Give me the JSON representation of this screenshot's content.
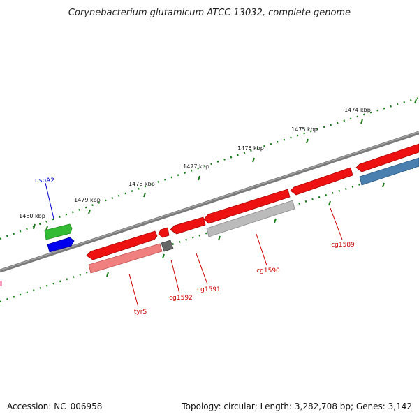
{
  "title": "Corynebacterium glutamicum ATCC 13032, complete genome",
  "footer": {
    "accession": "Accession: NC_006958",
    "summary": "Topology: circular; Length: 3,282,708 bp; Genes: 3,142"
  },
  "scale_labels": [
    "1474 kbp",
    "1475 kbp",
    "1476 kbp",
    "1477 kbp",
    "1478 kbp",
    "1479 kbp",
    "1480 kbp"
  ],
  "gene_labels": [
    {
      "name": "uspA2",
      "color": "#0000cc"
    },
    {
      "name": "tyrS",
      "color": "#cc0000"
    },
    {
      "name": "cg1592",
      "color": "#cc0000"
    },
    {
      "name": "cg1591",
      "color": "#cc0000"
    },
    {
      "name": "cg1590",
      "color": "#cc0000"
    },
    {
      "name": "cg1589",
      "color": "#cc0000"
    }
  ],
  "colors": {
    "backbone": "#808080",
    "tick": "#1a7a1a",
    "cds_forward": "#ee1111",
    "cds_reverse_light": "#f08080",
    "gray_feature": "#bbbbbb",
    "dark_gray_feature": "#666666",
    "green_feature": "#33bb33",
    "blue_feature": "#0000ee",
    "steel_blue_feature": "#4a80b0"
  }
}
